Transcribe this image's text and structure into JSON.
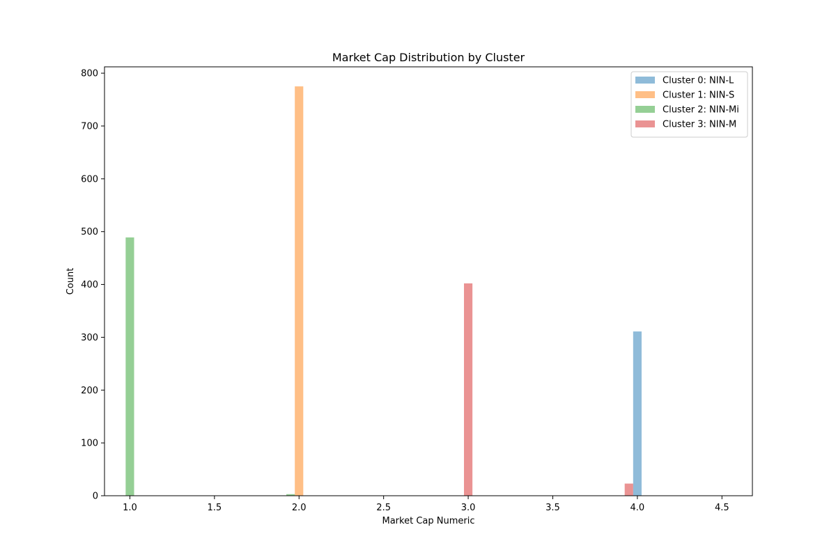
{
  "chart_data": {
    "type": "bar",
    "title": "Market Cap Distribution by Cluster",
    "xlabel": "Market Cap Numeric",
    "ylabel": "Count",
    "xlim": [
      0.85,
      4.68
    ],
    "ylim": [
      0,
      812
    ],
    "xticks": [
      1.0,
      1.5,
      2.0,
      2.5,
      3.0,
      3.5,
      4.0,
      4.5
    ],
    "xtick_labels": [
      "1.0",
      "1.5",
      "2.0",
      "2.5",
      "3.0",
      "3.5",
      "4.0",
      "4.5"
    ],
    "yticks": [
      0,
      100,
      200,
      300,
      400,
      500,
      600,
      700,
      800
    ],
    "ytick_labels": [
      "0",
      "100",
      "200",
      "300",
      "400",
      "500",
      "600",
      "700",
      "800"
    ],
    "bar_width": 0.05,
    "grid": false,
    "legend_position": "top-right",
    "series": [
      {
        "name": "Cluster 0: NIN-L",
        "color": "#1f77b4",
        "alpha": 0.5,
        "bars": [
          {
            "x": 4.0,
            "value": 311
          }
        ]
      },
      {
        "name": "Cluster 1: NIN-S",
        "color": "#ff7f0e",
        "alpha": 0.5,
        "bars": [
          {
            "x": 2.0,
            "value": 775
          }
        ]
      },
      {
        "name": "Cluster 2: NIN-Mi",
        "color": "#2ca02c",
        "alpha": 0.5,
        "bars": [
          {
            "x": 1.0,
            "value": 489
          },
          {
            "x": 1.95,
            "value": 3
          }
        ]
      },
      {
        "name": "Cluster 3: NIN-M",
        "color": "#d62728",
        "alpha": 0.5,
        "bars": [
          {
            "x": 3.0,
            "value": 402
          },
          {
            "x": 3.95,
            "value": 23
          }
        ]
      }
    ]
  }
}
